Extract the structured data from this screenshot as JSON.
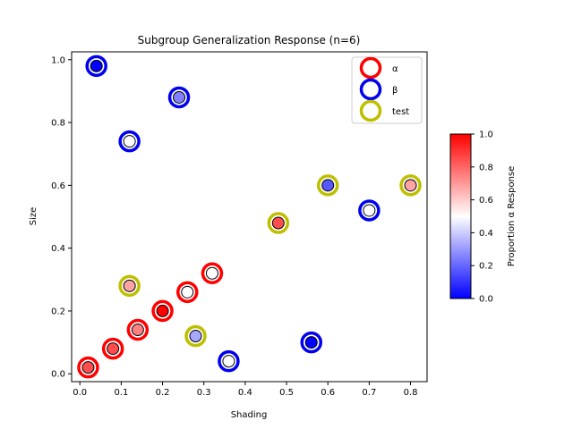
{
  "chart_data": {
    "type": "scatter",
    "title": "Subgroup Generalization Response (n=6)",
    "xlabel": "Shading",
    "ylabel": "Size",
    "xlim": [
      -0.02,
      0.84
    ],
    "ylim": [
      -0.025,
      1.025
    ],
    "xticks": [
      0.0,
      0.1,
      0.2,
      0.3,
      0.4,
      0.5,
      0.6,
      0.7,
      0.8
    ],
    "xtick_labels": [
      "0.0",
      "0.1",
      "0.2",
      "0.3",
      "0.4",
      "0.5",
      "0.6",
      "0.7",
      "0.8"
    ],
    "yticks": [
      0.0,
      0.2,
      0.4,
      0.6,
      0.8,
      1.0
    ],
    "ytick_labels": [
      "0.0",
      "0.2",
      "0.4",
      "0.6",
      "0.8",
      "1.0"
    ],
    "grid": false,
    "legend_position": "top-right",
    "series": [
      {
        "name": "α",
        "ring_color": "#ff0000",
        "points": [
          {
            "x": 0.02,
            "y": 0.02,
            "p": 0.85
          },
          {
            "x": 0.08,
            "y": 0.08,
            "p": 0.85
          },
          {
            "x": 0.14,
            "y": 0.14,
            "p": 0.75
          },
          {
            "x": 0.2,
            "y": 0.2,
            "p": 1.0
          },
          {
            "x": 0.26,
            "y": 0.26,
            "p": 0.5
          },
          {
            "x": 0.32,
            "y": 0.32,
            "p": 0.5
          }
        ]
      },
      {
        "name": "β",
        "ring_color": "#0000ee",
        "points": [
          {
            "x": 0.04,
            "y": 0.98,
            "p": 0.0
          },
          {
            "x": 0.24,
            "y": 0.88,
            "p": 0.25
          },
          {
            "x": 0.12,
            "y": 0.74,
            "p": 0.5
          },
          {
            "x": 0.7,
            "y": 0.52,
            "p": 0.5
          },
          {
            "x": 0.56,
            "y": 0.1,
            "p": 0.0
          },
          {
            "x": 0.36,
            "y": 0.04,
            "p": 0.5
          }
        ]
      },
      {
        "name": "test",
        "ring_color": "#bfbf00",
        "points": [
          {
            "x": 0.12,
            "y": 0.28,
            "p": 0.68
          },
          {
            "x": 0.28,
            "y": 0.12,
            "p": 0.33
          },
          {
            "x": 0.48,
            "y": 0.48,
            "p": 0.85
          },
          {
            "x": 0.6,
            "y": 0.6,
            "p": 0.17
          },
          {
            "x": 0.8,
            "y": 0.6,
            "p": 0.68
          }
        ]
      }
    ],
    "colorbar": {
      "label": "Proportion α Response",
      "range": [
        0.0,
        1.0
      ],
      "ticks": [
        "0.0",
        "0.2",
        "0.4",
        "0.6",
        "0.8",
        "1.0"
      ],
      "colors": [
        "#0000ff",
        "#ffffff",
        "#ff0000"
      ]
    }
  }
}
